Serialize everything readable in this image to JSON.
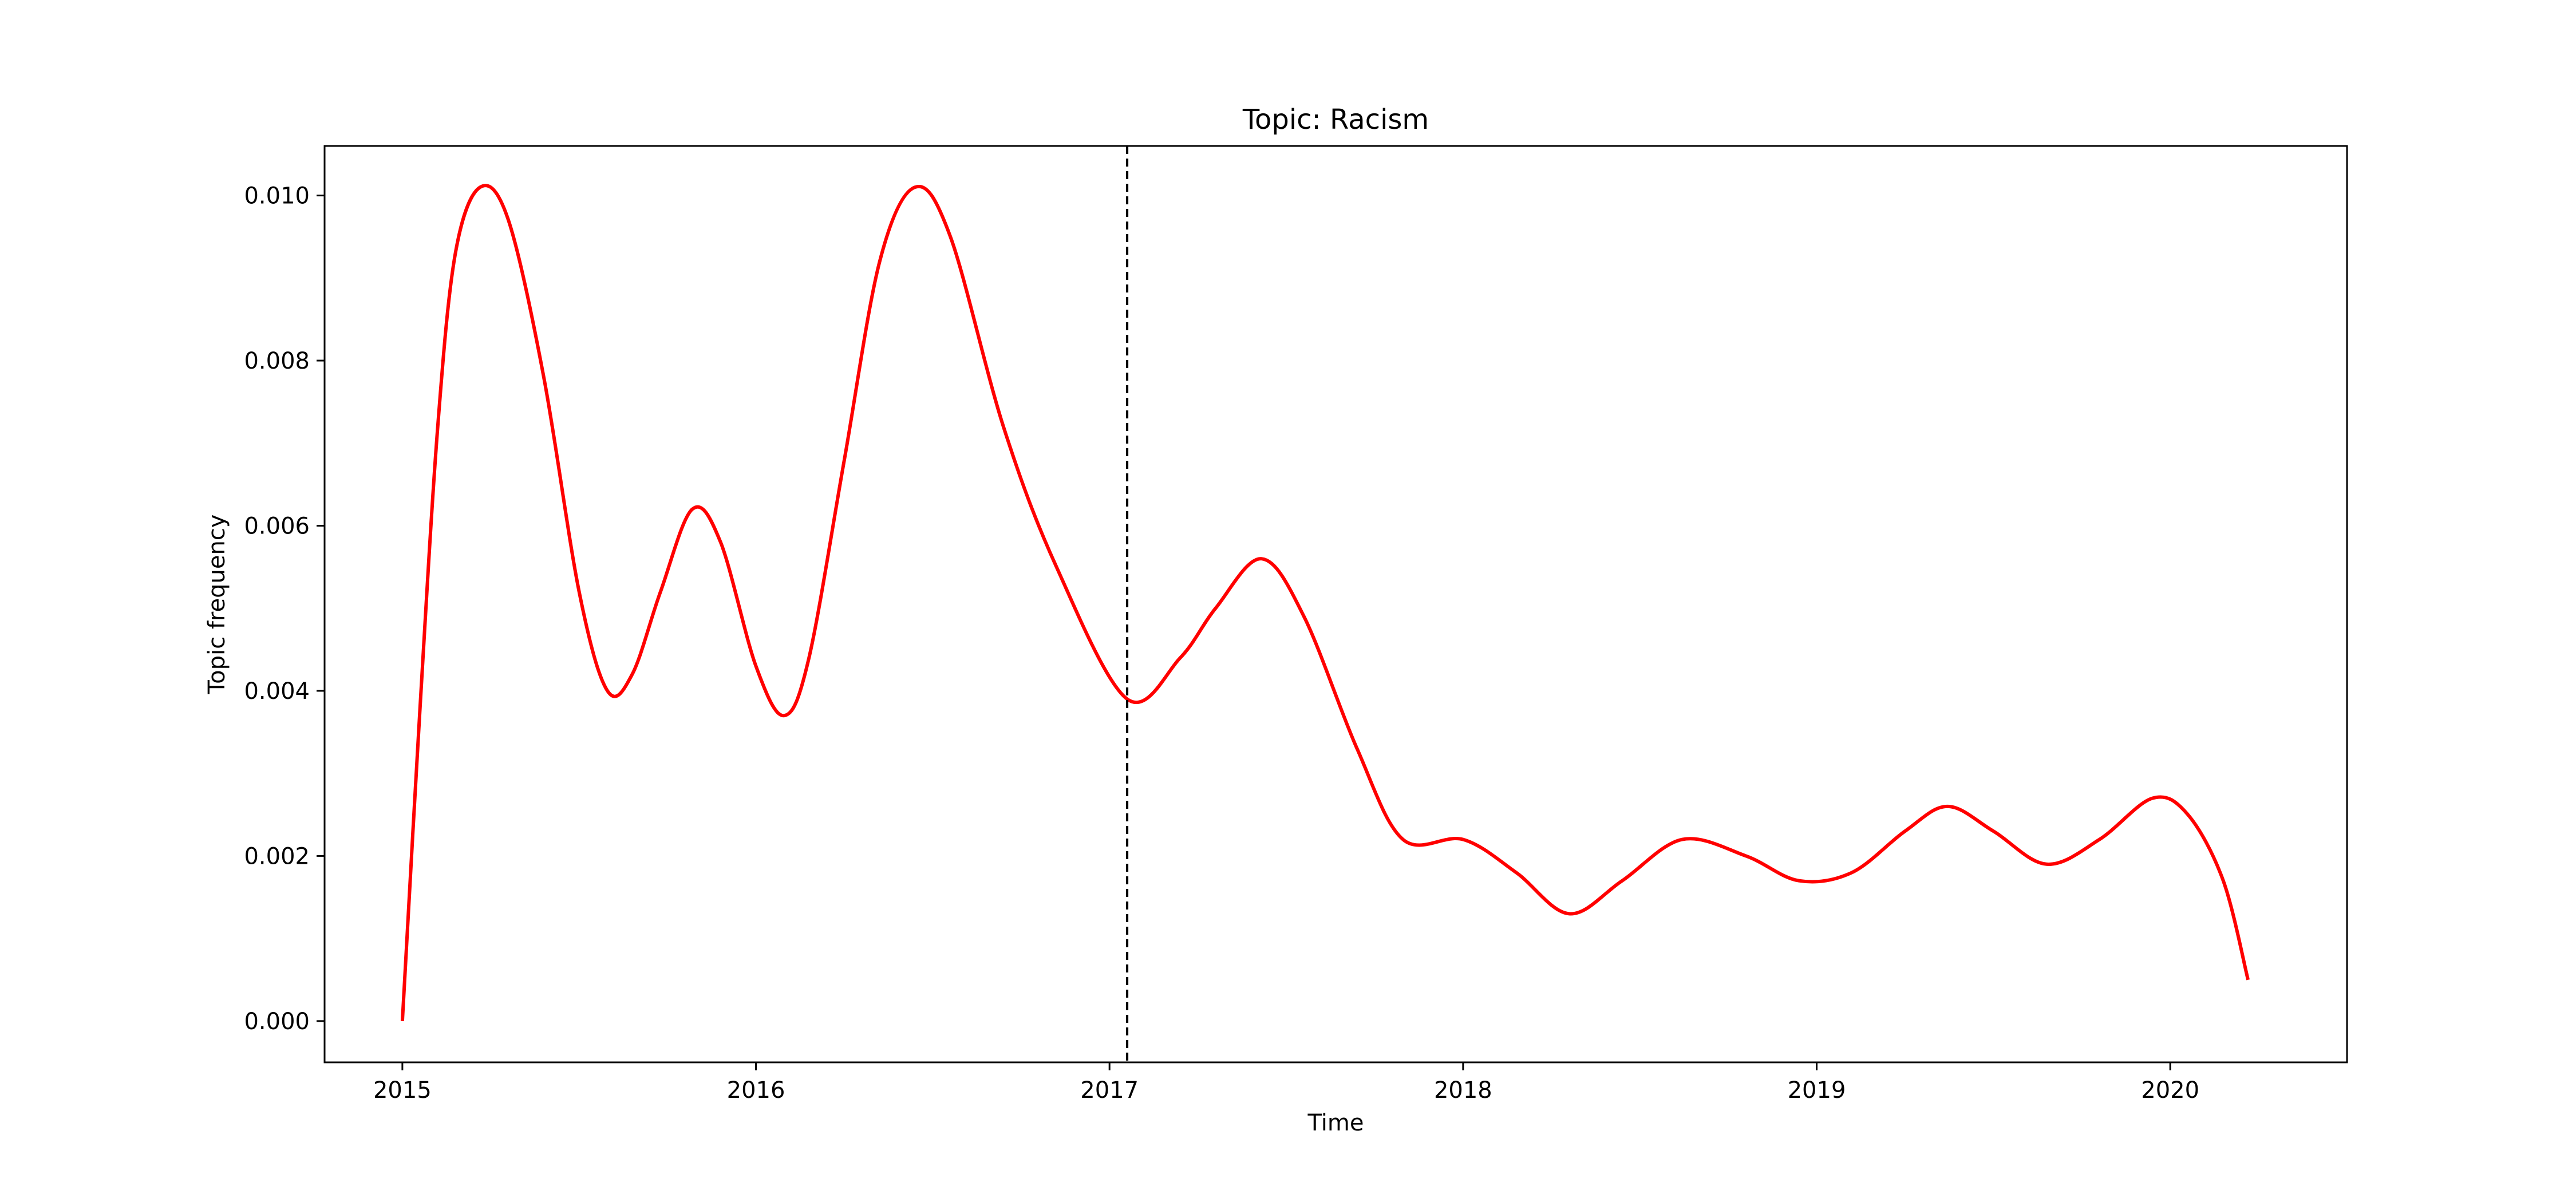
{
  "chart_data": {
    "type": "line",
    "title": "Topic: Racism",
    "xlabel": "Time",
    "ylabel": "Topic frequency",
    "xlim": [
      2014.78,
      2020.5
    ],
    "ylim": [
      -0.0005,
      0.0106
    ],
    "xticks": [
      {
        "value": 2015,
        "label": "2015"
      },
      {
        "value": 2016,
        "label": "2016"
      },
      {
        "value": 2017,
        "label": "2017"
      },
      {
        "value": 2018,
        "label": "2018"
      },
      {
        "value": 2019,
        "label": "2019"
      },
      {
        "value": 2020,
        "label": "2020"
      }
    ],
    "yticks": [
      {
        "value": 0.0,
        "label": "0.000"
      },
      {
        "value": 0.002,
        "label": "0.002"
      },
      {
        "value": 0.004,
        "label": "0.004"
      },
      {
        "value": 0.006,
        "label": "0.006"
      },
      {
        "value": 0.008,
        "label": "0.008"
      },
      {
        "value": 0.01,
        "label": "0.010"
      }
    ],
    "grid": false,
    "series": [
      {
        "color": "#ff0000",
        "x": [
          2015.0,
          2015.05,
          2015.1,
          2015.15,
          2015.22,
          2015.3,
          2015.4,
          2015.5,
          2015.58,
          2015.65,
          2015.73,
          2015.82,
          2015.9,
          2016.0,
          2016.08,
          2016.15,
          2016.25,
          2016.35,
          2016.45,
          2016.55,
          2016.7,
          2016.85,
          2017.05,
          2017.2,
          2017.3,
          2017.43,
          2017.55,
          2017.7,
          2017.83,
          2018.0,
          2018.15,
          2018.3,
          2018.45,
          2018.62,
          2018.8,
          2018.95,
          2019.1,
          2019.25,
          2019.37,
          2019.5,
          2019.65,
          2019.8,
          2019.95,
          2020.05,
          2020.15,
          2020.22
        ],
        "y": [
          0.0,
          0.0038,
          0.0072,
          0.0093,
          0.0101,
          0.0097,
          0.0078,
          0.0052,
          0.004,
          0.0042,
          0.0052,
          0.0062,
          0.0058,
          0.0043,
          0.0037,
          0.0044,
          0.0068,
          0.0092,
          0.0101,
          0.0095,
          0.0072,
          0.0055,
          0.0039,
          0.0044,
          0.005,
          0.0056,
          0.0049,
          0.0033,
          0.0022,
          0.0022,
          0.0018,
          0.0013,
          0.0017,
          0.0022,
          0.002,
          0.0017,
          0.0018,
          0.0023,
          0.0026,
          0.0023,
          0.0019,
          0.0022,
          0.0027,
          0.0025,
          0.0017,
          0.0005
        ]
      }
    ],
    "annotations": [
      {
        "type": "vline",
        "x": 2017.05,
        "style": "dashed",
        "color": "#000000"
      }
    ]
  }
}
